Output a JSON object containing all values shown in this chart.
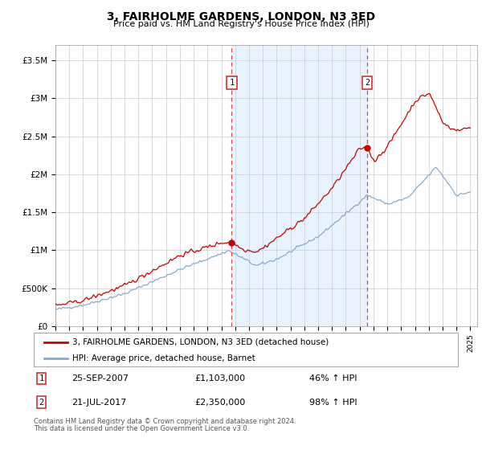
{
  "title": "3, FAIRHOLME GARDENS, LONDON, N3 3ED",
  "subtitle": "Price paid vs. HM Land Registry's House Price Index (HPI)",
  "ylabel_ticks": [
    "£0",
    "£500K",
    "£1M",
    "£1.5M",
    "£2M",
    "£2.5M",
    "£3M",
    "£3.5M"
  ],
  "ylim": [
    0,
    3700000
  ],
  "yticks": [
    0,
    500000,
    1000000,
    1500000,
    2000000,
    2500000,
    3000000,
    3500000
  ],
  "xlim_start": 1995.0,
  "xlim_end": 2025.5,
  "sale1_x": 2007.75,
  "sale1_y": 1103000,
  "sale1_label": "25-SEP-2007",
  "sale1_price": "£1,103,000",
  "sale1_hpi": "46% ↑ HPI",
  "sale2_x": 2017.55,
  "sale2_y": 2350000,
  "sale2_label": "21-JUL-2017",
  "sale2_price": "£2,350,000",
  "sale2_hpi": "98% ↑ HPI",
  "legend_line1": "3, FAIRHOLME GARDENS, LONDON, N3 3ED (detached house)",
  "legend_line2": "HPI: Average price, detached house, Barnet",
  "footer1": "Contains HM Land Registry data © Crown copyright and database right 2024.",
  "footer2": "This data is licensed under the Open Government Licence v3.0.",
  "bg_shade_color": "#ddeeff",
  "red_line_color": "#cc0000",
  "blue_line_color": "#88aacc",
  "grid_color": "#cccccc",
  "dashed_line_color": "#dd4444"
}
